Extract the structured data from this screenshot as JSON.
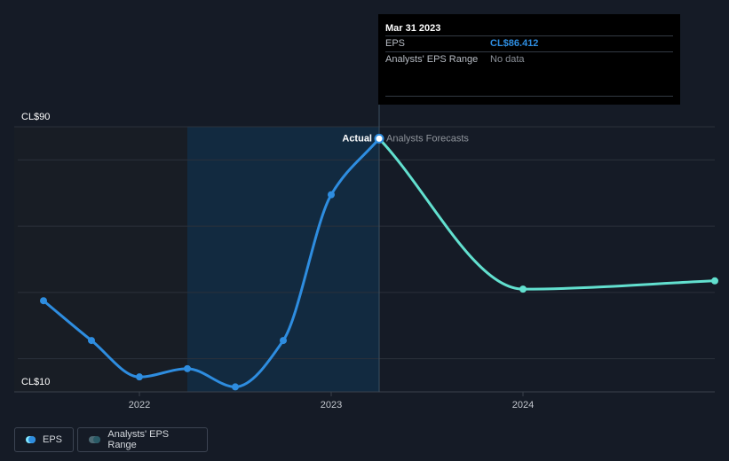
{
  "chart_data": {
    "type": "line",
    "title": "",
    "xlabel": "",
    "ylabel": "",
    "ylim": [
      10,
      90
    ],
    "y_tick_labels": [
      "CL$90",
      "CL$10"
    ],
    "x_tick_labels": [
      "2022",
      "2023",
      "2024"
    ],
    "annotations": {
      "actual": "Actual",
      "forecast": "Analysts Forecasts"
    },
    "series": [
      {
        "name": "EPS",
        "kind": "actual",
        "color": "#2e8de0",
        "points": [
          {
            "t": 2021.5,
            "v": 37.5
          },
          {
            "t": 2021.75,
            "v": 25.5
          },
          {
            "t": 2022.0,
            "v": 14.5
          },
          {
            "t": 2022.25,
            "v": 17.0
          },
          {
            "t": 2022.5,
            "v": 11.5
          },
          {
            "t": 2022.75,
            "v": 25.5
          },
          {
            "t": 2023.0,
            "v": 69.5
          },
          {
            "t": 2023.25,
            "v": 86.412
          }
        ]
      },
      {
        "name": "EPS Forecast",
        "kind": "forecast",
        "color": "#62e0cf",
        "points": [
          {
            "t": 2023.25,
            "v": 86.412
          },
          {
            "t": 2024.0,
            "v": 41.0
          },
          {
            "t": 2025.0,
            "v": 43.5
          }
        ]
      }
    ]
  },
  "tooltip": {
    "date": "Mar 31 2023",
    "eps_label": "EPS",
    "eps_value": "CL$86.412",
    "range_label": "Analysts' EPS Range",
    "range_value": "No data"
  },
  "legend": {
    "eps_label": "EPS",
    "range_label": "Analysts' EPS Range"
  },
  "colors": {
    "background": "#151b26",
    "past_shade": "#181d25",
    "highlight": "#12304a",
    "grid": "#2b313b",
    "actual_line": "#2e8de0",
    "forecast_line": "#62e0cf",
    "text": "#ffffff",
    "muted_text": "#8a8f97"
  }
}
